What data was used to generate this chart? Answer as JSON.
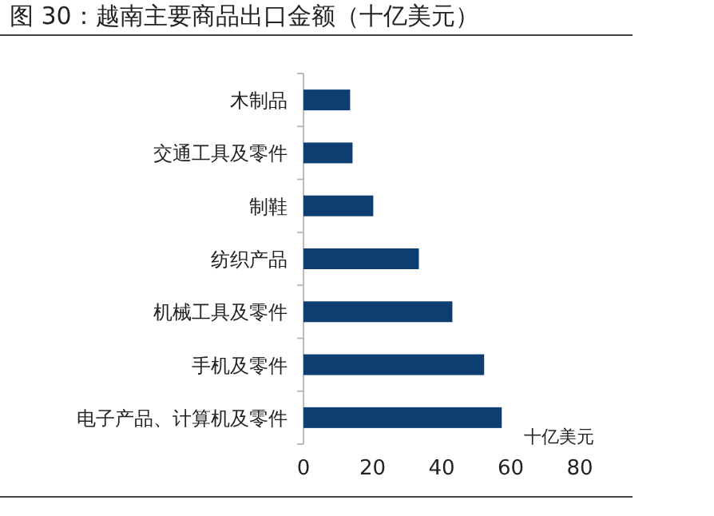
{
  "chart_data": {
    "type": "bar",
    "orientation": "horizontal",
    "title": "图 30：越南主要商品出口金额（十亿美元）",
    "xlabel": "十亿美元",
    "categories": [
      "木制品",
      "交通工具及零件",
      "制鞋",
      "纺织产品",
      "机械工具及零件",
      "手机及零件",
      "电子产品、计算机及零件"
    ],
    "values": [
      13.5,
      14.2,
      20.2,
      33.4,
      43.1,
      52.3,
      57.4
    ],
    "color": "#0e3d72",
    "xlim": [
      0,
      80
    ],
    "xticks": [
      0,
      20,
      40,
      60,
      80
    ],
    "grid": false
  }
}
